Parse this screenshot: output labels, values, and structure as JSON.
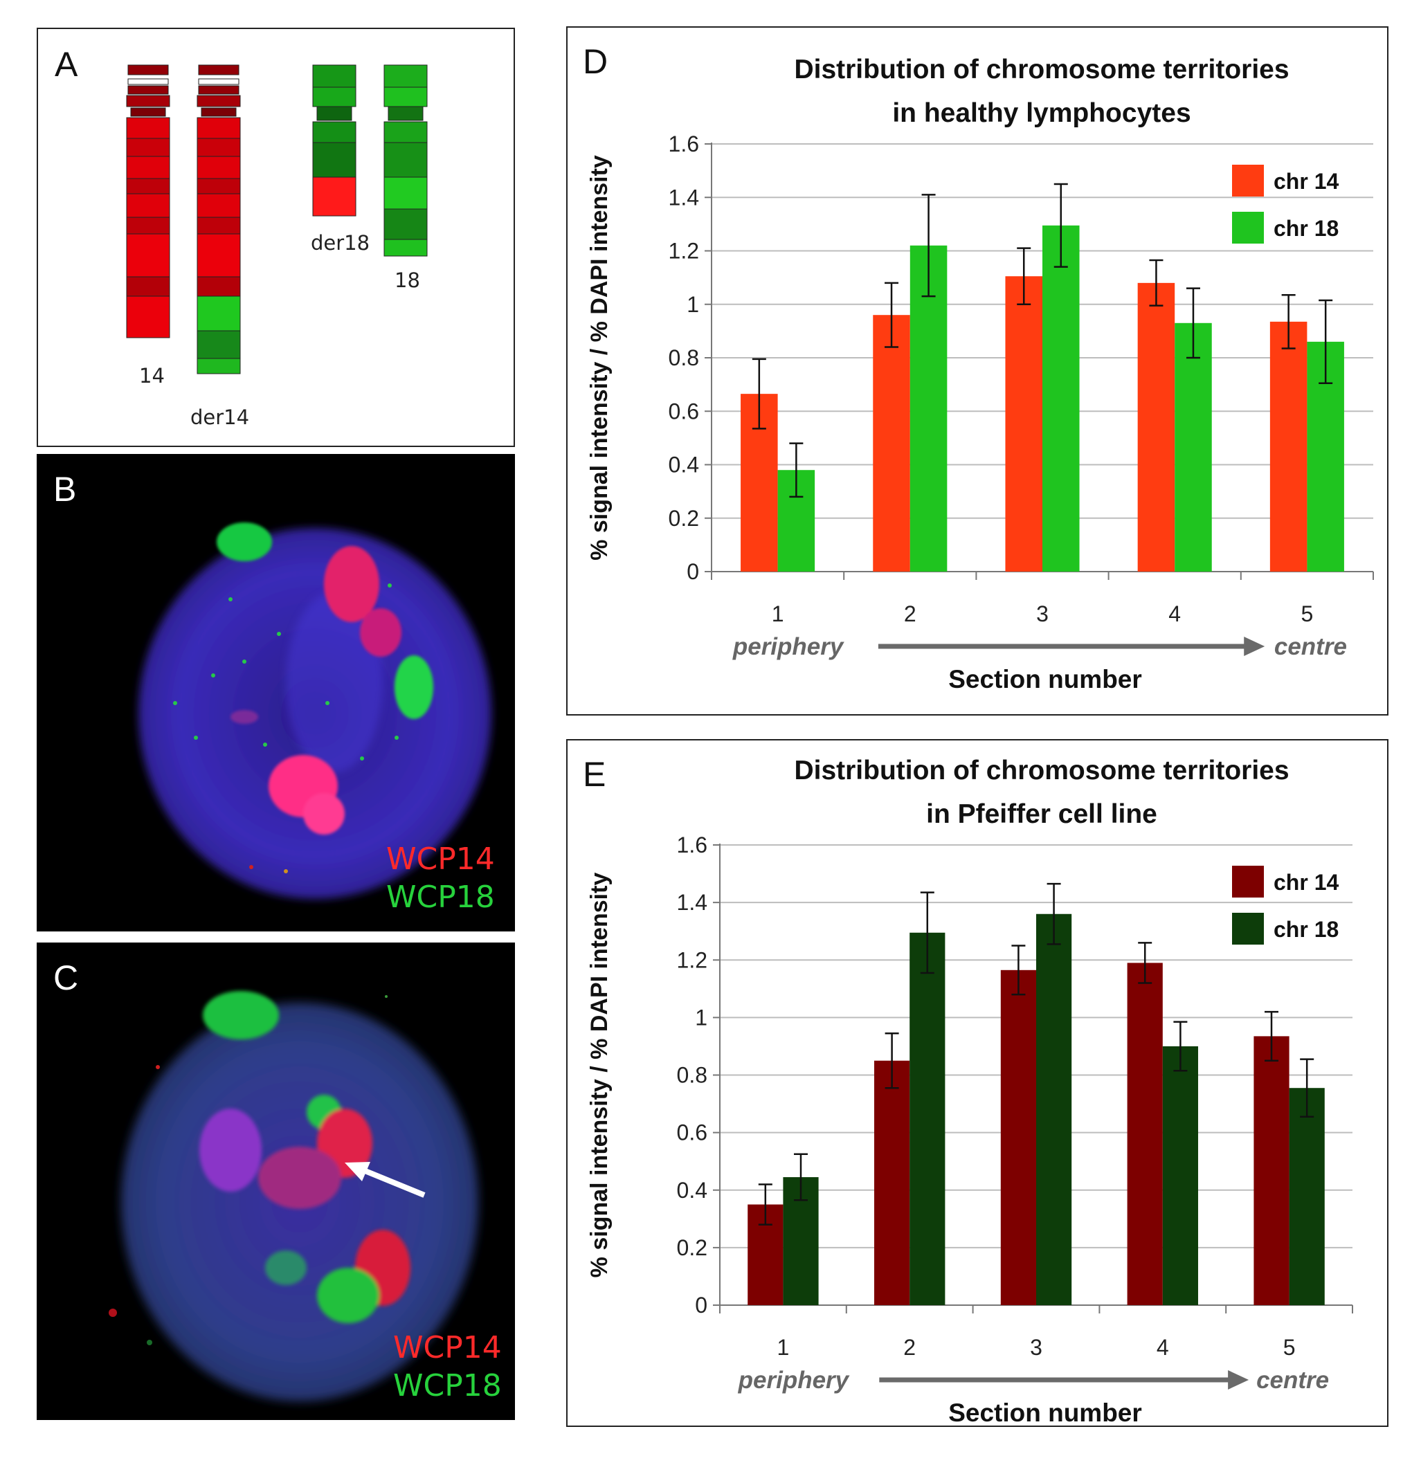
{
  "panels": {
    "a": {
      "label": "A",
      "chromosomes": [
        {
          "name": "14",
          "color": "#e0000a"
        },
        {
          "name": "der14",
          "color": "#e0000a"
        },
        {
          "name": "der18",
          "color": "#18a81a"
        },
        {
          "name": "18",
          "color": "#1fc01f"
        }
      ]
    },
    "b": {
      "label": "B",
      "probe_red": "WCP14",
      "probe_green": "WCP18"
    },
    "c": {
      "label": "C",
      "probe_red": "WCP14",
      "probe_green": "WCP18"
    },
    "d": {
      "label": "D"
    },
    "e": {
      "label": "E"
    }
  },
  "chart_data": [
    {
      "type": "bar",
      "title": "Distribution of chromosome territories",
      "subtitle": "in healthy lymphocytes",
      "xlabel": "Section number",
      "ylabel": "% signal intensity / % DAPI intensity",
      "categories": [
        "1",
        "2",
        "3",
        "4",
        "5"
      ],
      "x_annotations": {
        "start": "periphery",
        "end": "centre"
      },
      "ylim": [
        0,
        1.6
      ],
      "yticks": [
        "0",
        "0.2",
        "0.4",
        "0.6",
        "0.8",
        "1",
        "1.2",
        "1.4",
        "1.6"
      ],
      "grid": true,
      "legend": "top-right",
      "series": [
        {
          "name": "chr 14",
          "color": "#ff3c11",
          "values": [
            0.665,
            0.96,
            1.105,
            1.08,
            0.935
          ],
          "errors": [
            0.13,
            0.12,
            0.105,
            0.085,
            0.1
          ]
        },
        {
          "name": "chr 18",
          "color": "#1fc41f",
          "values": [
            0.38,
            1.22,
            1.295,
            0.93,
            0.86
          ],
          "errors": [
            0.1,
            0.19,
            0.155,
            0.13,
            0.155
          ]
        }
      ]
    },
    {
      "type": "bar",
      "title": "Distribution of chromosome territories",
      "subtitle": "in Pfeiffer cell line",
      "xlabel": "Section number",
      "ylabel": "% signal intensity / % DAPI intensity",
      "categories": [
        "1",
        "2",
        "3",
        "4",
        "5"
      ],
      "x_annotations": {
        "start": "periphery",
        "end": "centre"
      },
      "ylim": [
        0,
        1.6
      ],
      "yticks": [
        "0",
        "0.2",
        "0.4",
        "0.6",
        "0.8",
        "1",
        "1.2",
        "1.4",
        "1.6"
      ],
      "grid": true,
      "legend": "top-right",
      "series": [
        {
          "name": "chr 14",
          "color": "#7d0000",
          "values": [
            0.35,
            0.85,
            1.165,
            1.19,
            0.935
          ],
          "errors": [
            0.07,
            0.095,
            0.085,
            0.07,
            0.085
          ]
        },
        {
          "name": "chr 18",
          "color": "#0d3d0a",
          "values": [
            0.445,
            1.295,
            1.36,
            0.9,
            0.755
          ],
          "errors": [
            0.08,
            0.14,
            0.105,
            0.085,
            0.1
          ]
        }
      ]
    }
  ]
}
